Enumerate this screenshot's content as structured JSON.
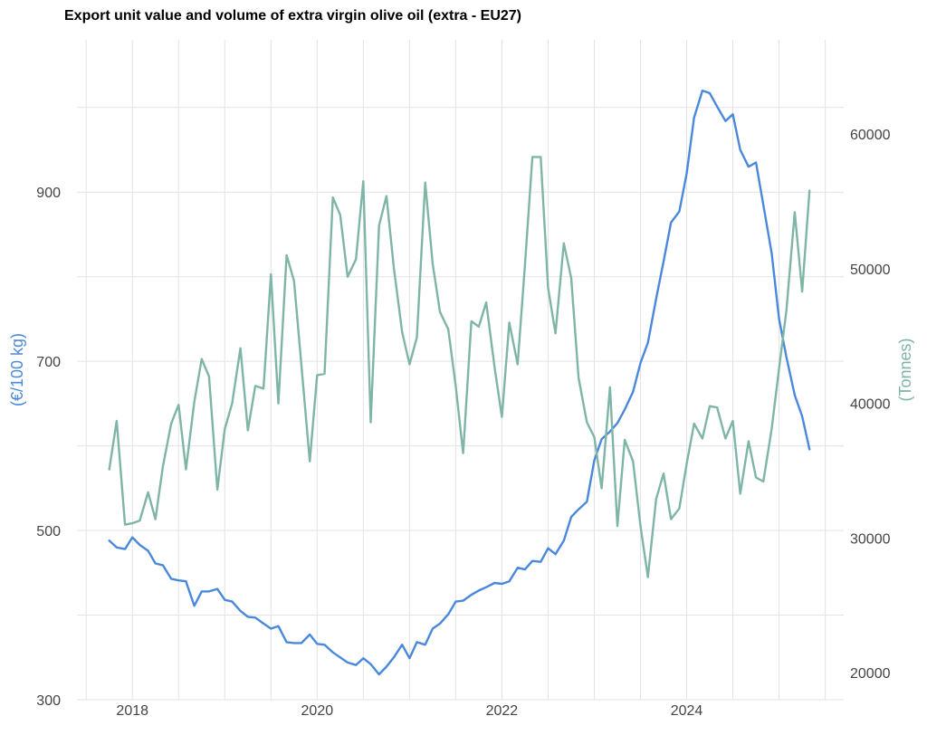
{
  "chart_data": {
    "type": "line",
    "title": "Export unit value and volume of extra virgin olive oil (extra - EU27)",
    "x_range": [
      2017.4,
      2025.7
    ],
    "x_ticks": [
      2018,
      2020,
      2022,
      2024
    ],
    "left_axis": {
      "label": "(€/100 kg)",
      "ticks": [
        300,
        500,
        700,
        900
      ],
      "range": [
        300,
        1080
      ],
      "color": "#4a88db"
    },
    "right_axis": {
      "label": "(Tonnes)",
      "ticks": [
        20000,
        30000,
        40000,
        50000,
        60000
      ],
      "range": [
        18000,
        67000
      ],
      "color": "#7eb5a6"
    },
    "grid": true,
    "series": [
      {
        "axis": "left",
        "color": "#4a88db",
        "x": [
          2017.75,
          2017.83,
          2017.92,
          2018.0,
          2018.08,
          2018.17,
          2018.25,
          2018.33,
          2018.42,
          2018.5,
          2018.58,
          2018.67,
          2018.75,
          2018.83,
          2018.92,
          2019.0,
          2019.08,
          2019.17,
          2019.25,
          2019.33,
          2019.42,
          2019.5,
          2019.58,
          2019.67,
          2019.75,
          2019.83,
          2019.92,
          2020.0,
          2020.08,
          2020.17,
          2020.25,
          2020.33,
          2020.42,
          2020.5,
          2020.58,
          2020.67,
          2020.75,
          2020.83,
          2020.92,
          2021.0,
          2021.08,
          2021.17,
          2021.25,
          2021.33,
          2021.42,
          2021.5,
          2021.58,
          2021.67,
          2021.75,
          2021.83,
          2021.92,
          2022.0,
          2022.08,
          2022.17,
          2022.25,
          2022.33,
          2022.42,
          2022.5,
          2022.58,
          2022.67,
          2022.75,
          2022.83,
          2022.92,
          2023.0,
          2023.08,
          2023.17,
          2023.25,
          2023.33,
          2023.42,
          2023.5,
          2023.58,
          2023.67,
          2023.75,
          2023.83,
          2023.92,
          2024.0,
          2024.08,
          2024.17,
          2024.25,
          2024.33,
          2024.42,
          2024.5,
          2024.58,
          2024.67,
          2024.75,
          2024.83,
          2024.92,
          2025.0,
          2025.08,
          2025.17,
          2025.25,
          2025.33
        ],
        "values": [
          488,
          480,
          478,
          492,
          483,
          476,
          461,
          459,
          443,
          441,
          440,
          411,
          428,
          428,
          431,
          418,
          416,
          405,
          398,
          397,
          390,
          384,
          387,
          368,
          367,
          367,
          377,
          366,
          365,
          356,
          350,
          344,
          341,
          349,
          342,
          330,
          339,
          350,
          365,
          349,
          368,
          365,
          384,
          390,
          401,
          416,
          417,
          424,
          429,
          433,
          438,
          437,
          440,
          456,
          454,
          464,
          463,
          479,
          472,
          488,
          516,
          525,
          534,
          583,
          608,
          617,
          627,
          643,
          664,
          698,
          722,
          774,
          818,
          864,
          877,
          922,
          988,
          1020,
          1017,
          1001,
          984,
          992,
          950,
          930,
          935,
          885,
          828,
          750,
          705,
          660,
          635,
          596
        ]
      },
      {
        "axis": "right",
        "color": "#7eb5a6",
        "x": [
          2017.75,
          2017.83,
          2017.92,
          2018.0,
          2018.08,
          2018.17,
          2018.25,
          2018.33,
          2018.42,
          2018.5,
          2018.58,
          2018.67,
          2018.75,
          2018.83,
          2018.92,
          2019.0,
          2019.08,
          2019.17,
          2019.25,
          2019.33,
          2019.42,
          2019.5,
          2019.58,
          2019.67,
          2019.75,
          2019.83,
          2019.92,
          2020.0,
          2020.08,
          2020.17,
          2020.25,
          2020.33,
          2020.42,
          2020.5,
          2020.58,
          2020.67,
          2020.75,
          2020.83,
          2020.92,
          2021.0,
          2021.08,
          2021.17,
          2021.25,
          2021.33,
          2021.42,
          2021.5,
          2021.58,
          2021.67,
          2021.75,
          2021.83,
          2021.92,
          2022.0,
          2022.08,
          2022.17,
          2022.25,
          2022.33,
          2022.42,
          2022.5,
          2022.58,
          2022.67,
          2022.75,
          2022.83,
          2022.92,
          2023.0,
          2023.08,
          2023.17,
          2023.25,
          2023.33,
          2023.42,
          2023.5,
          2023.58,
          2023.67,
          2023.75,
          2023.83,
          2023.92,
          2024.0,
          2024.08,
          2024.17,
          2024.25,
          2024.33,
          2024.42,
          2024.5,
          2024.58,
          2024.67,
          2024.75,
          2024.83,
          2024.92,
          2025.0,
          2025.08,
          2025.17,
          2025.25,
          2025.33
        ],
        "values": [
          35100,
          38700,
          31000,
          31100,
          31300,
          33400,
          31400,
          35300,
          38500,
          39900,
          35100,
          40100,
          43300,
          42000,
          33600,
          38100,
          40000,
          44100,
          38000,
          41300,
          41100,
          49600,
          40000,
          51000,
          49100,
          42800,
          35700,
          42100,
          42200,
          55300,
          54000,
          49400,
          50700,
          56500,
          38600,
          53200,
          55400,
          50100,
          45300,
          42900,
          44900,
          56400,
          50400,
          46800,
          45500,
          41300,
          36300,
          46100,
          45700,
          47500,
          42700,
          39000,
          46000,
          42900,
          50300,
          58300,
          58300,
          48600,
          45200,
          51900,
          49300,
          41900,
          38600,
          37500,
          33700,
          41200,
          30900,
          37300,
          35700,
          30900,
          27100,
          32900,
          34800,
          31400,
          32200,
          35500,
          38500,
          37400,
          39800,
          39700,
          37400,
          38700,
          33300,
          37200,
          34500,
          34200,
          38100,
          42600,
          46900,
          54200,
          48300,
          55800
        ]
      }
    ]
  }
}
